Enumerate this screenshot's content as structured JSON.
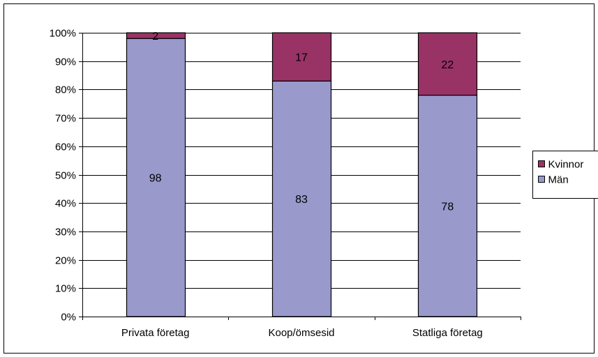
{
  "chart_data": {
    "type": "bar",
    "stacked": true,
    "percent_stacked": true,
    "categories": [
      "Privata företag",
      "Koop/ömsesid",
      "Statliga företag"
    ],
    "series": [
      {
        "name": "Män",
        "values": [
          98,
          83,
          78
        ],
        "color": "#9999cc",
        "labels": [
          "98",
          "83",
          "78"
        ]
      },
      {
        "name": "Kvinnor",
        "values": [
          2,
          17,
          22
        ],
        "color": "#993366",
        "labels": [
          "2",
          "17",
          "22"
        ]
      }
    ],
    "y_ticks": [
      "0%",
      "10%",
      "20%",
      "30%",
      "40%",
      "50%",
      "60%",
      "70%",
      "80%",
      "90%",
      "100%"
    ],
    "ylim": [
      0,
      100
    ],
    "grid": true,
    "legend": {
      "placement": "right",
      "entries": [
        "Kvinnor",
        "Män"
      ]
    },
    "title": "",
    "xlabel": "",
    "ylabel": ""
  }
}
